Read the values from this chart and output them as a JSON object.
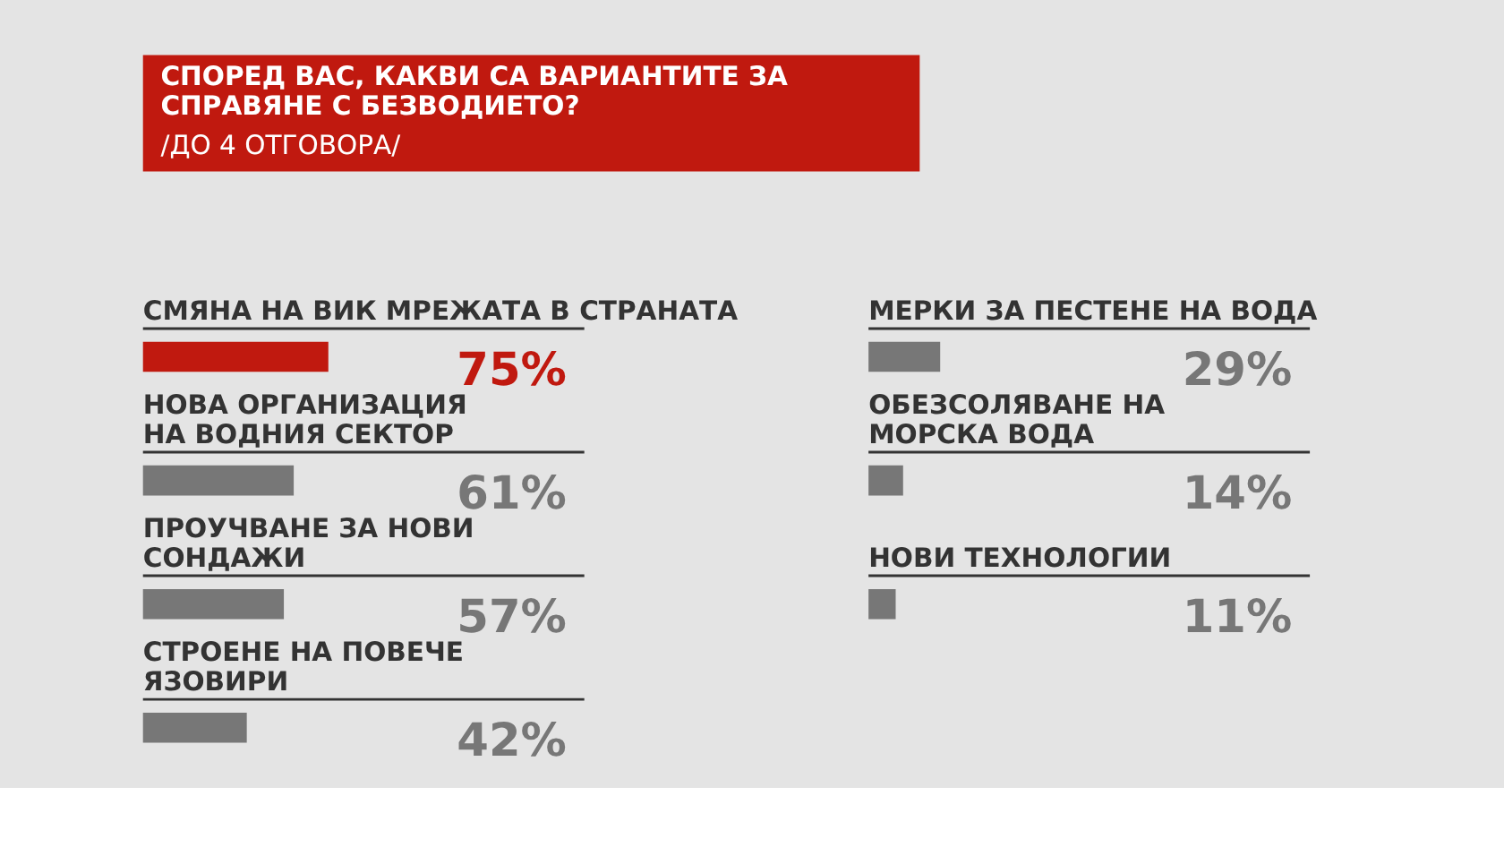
{
  "chart_data": [
    {
      "type": "bar",
      "orientation": "horizontal",
      "title": "СПОРЕД ВАС, КАКВИ СА ВАРИАНТИТЕ ЗА\nСПРАВЯНЕ С БЕЗВОДИЕТО?",
      "subtitle": "/ДО 4 ОТГОВОРА/",
      "categories": [
        "СМЯНА НА ВИК МРЕЖАТА В СТРАНАТА",
        "НОВА ОРГАНИЗАЦИЯ\nНА ВОДНИЯ СЕКТОР",
        "ПРОУЧВАНЕ ЗА НОВИ\nСОНДАЖИ",
        "СТРОЕНЕ НА ПОВЕЧЕ\nЯЗОВИРИ"
      ],
      "values": [
        75,
        61,
        57,
        42
      ],
      "colors": [
        "#c0190f",
        "#777777",
        "#777777",
        "#777777"
      ],
      "value_labels": [
        "75%",
        "61%",
        "57%",
        "42%"
      ]
    },
    {
      "type": "bar",
      "orientation": "horizontal",
      "categories": [
        "МЕРКИ ЗА ПЕСТЕНЕ НА ВОДА",
        "ОБЕЗСОЛЯВАНЕ НА\nМОРСКА ВОДА",
        "НОВИ ТЕХНОЛОГИИ"
      ],
      "values": [
        29,
        14,
        11
      ],
      "colors": [
        "#777777",
        "#777777",
        "#777777"
      ],
      "value_labels": [
        "29%",
        "14%",
        "11%"
      ]
    }
  ]
}
